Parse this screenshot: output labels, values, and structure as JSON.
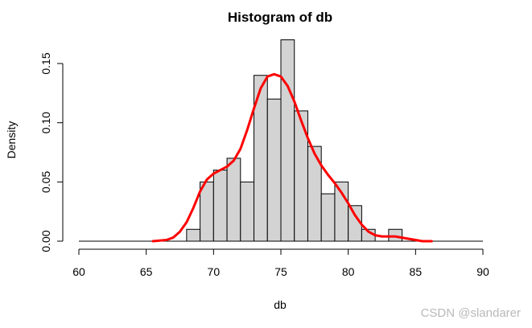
{
  "chart_data": {
    "type": "bar",
    "subtype": "histogram-with-density-line",
    "title": "Histogram of db",
    "xlabel": "db",
    "ylabel": "Density",
    "xlim": [
      60,
      90
    ],
    "ylim": [
      0,
      0.17
    ],
    "x_ticks": [
      "60",
      "65",
      "70",
      "75",
      "80",
      "85",
      "90"
    ],
    "y_ticks": [
      "0.00",
      "0.05",
      "0.10",
      "0.15"
    ],
    "bin_width": 1,
    "bins": [
      {
        "from": 68,
        "to": 69,
        "density": 0.01
      },
      {
        "from": 69,
        "to": 70,
        "density": 0.05
      },
      {
        "from": 70,
        "to": 71,
        "density": 0.06
      },
      {
        "from": 71,
        "to": 72,
        "density": 0.07
      },
      {
        "from": 72,
        "to": 73,
        "density": 0.05
      },
      {
        "from": 73,
        "to": 74,
        "density": 0.14
      },
      {
        "from": 74,
        "to": 75,
        "density": 0.12
      },
      {
        "from": 75,
        "to": 76,
        "density": 0.17
      },
      {
        "from": 76,
        "to": 77,
        "density": 0.11
      },
      {
        "from": 77,
        "to": 78,
        "density": 0.08
      },
      {
        "from": 78,
        "to": 79,
        "density": 0.04
      },
      {
        "from": 79,
        "to": 80,
        "density": 0.05
      },
      {
        "from": 80,
        "to": 81,
        "density": 0.03
      },
      {
        "from": 81,
        "to": 82,
        "density": 0.01
      },
      {
        "from": 82,
        "to": 83,
        "density": 0.0
      },
      {
        "from": 83,
        "to": 84,
        "density": 0.01
      }
    ],
    "baseline_range": [
      60,
      90
    ],
    "density_curve": {
      "x": [
        65.5,
        66.5,
        67.0,
        67.5,
        68.0,
        68.5,
        69.0,
        69.5,
        70.0,
        70.5,
        71.0,
        71.5,
        72.0,
        72.5,
        73.0,
        73.5,
        74.0,
        74.5,
        75.0,
        75.5,
        76.0,
        76.5,
        77.0,
        77.5,
        78.0,
        78.5,
        79.0,
        79.5,
        80.0,
        80.5,
        81.0,
        81.5,
        82.0,
        82.5,
        83.0,
        83.5,
        84.0,
        84.5,
        85.0,
        85.5,
        86.2
      ],
      "y": [
        0.0,
        0.001,
        0.003,
        0.008,
        0.016,
        0.028,
        0.042,
        0.052,
        0.057,
        0.06,
        0.063,
        0.068,
        0.078,
        0.094,
        0.112,
        0.129,
        0.139,
        0.141,
        0.139,
        0.131,
        0.118,
        0.102,
        0.087,
        0.074,
        0.064,
        0.056,
        0.049,
        0.041,
        0.032,
        0.022,
        0.014,
        0.008,
        0.005,
        0.004,
        0.004,
        0.004,
        0.003,
        0.002,
        0.001,
        0.0,
        0.0
      ]
    },
    "colors": {
      "bar_fill": "#d3d3d3",
      "bar_stroke": "#000000",
      "density_line": "#ff0000"
    },
    "grid": false,
    "legend": "none"
  },
  "watermark": "CSDN @slandarer"
}
